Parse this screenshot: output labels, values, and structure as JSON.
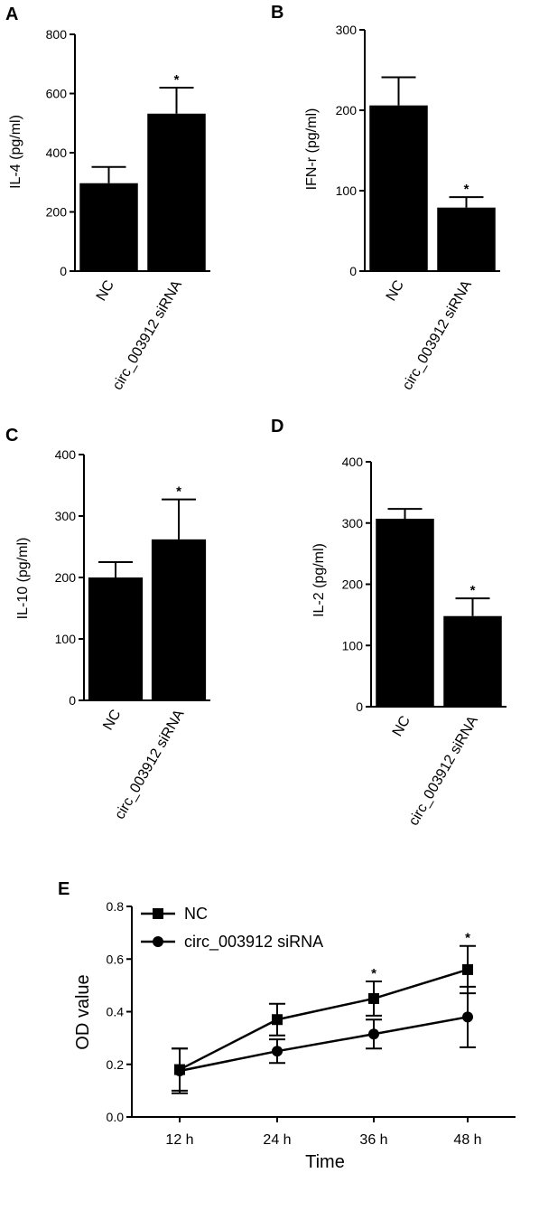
{
  "chart_data": [
    {
      "panel": "A",
      "type": "bar",
      "ylabel": "IL-4 (pg/ml)",
      "ylim": [
        0,
        800
      ],
      "yticks": [
        0,
        200,
        400,
        600,
        800
      ],
      "categories": [
        "NC",
        "circ_003912 siRNA"
      ],
      "values": [
        297,
        532
      ],
      "errors": [
        55,
        88
      ],
      "significance": [
        "",
        "*"
      ]
    },
    {
      "panel": "B",
      "type": "bar",
      "ylabel": "IFN-r (pg/ml)",
      "ylim": [
        0,
        300
      ],
      "yticks": [
        0,
        100,
        200,
        300
      ],
      "categories": [
        "NC",
        "circ_003912 siRNA"
      ],
      "values": [
        206,
        79
      ],
      "errors": [
        35,
        13
      ],
      "significance": [
        "",
        "*"
      ]
    },
    {
      "panel": "C",
      "type": "bar",
      "ylabel": "IL-10 (pg/ml)",
      "ylim": [
        0,
        400
      ],
      "yticks": [
        0,
        100,
        200,
        300,
        400
      ],
      "categories": [
        "NC",
        "circ_003912 siRNA"
      ],
      "values": [
        200,
        262
      ],
      "errors": [
        25,
        65
      ],
      "significance": [
        "",
        "*"
      ]
    },
    {
      "panel": "D",
      "type": "bar",
      "ylabel": "IL-2 (pg/ml)",
      "ylim": [
        0,
        400
      ],
      "yticks": [
        0,
        100,
        200,
        300,
        400
      ],
      "categories": [
        "NC",
        "circ_003912 siRNA"
      ],
      "values": [
        307,
        148
      ],
      "errors": [
        16,
        29
      ],
      "significance": [
        "",
        "*"
      ]
    },
    {
      "panel": "E",
      "type": "line",
      "xlabel": "Time",
      "ylabel": "OD value",
      "ylim": [
        0,
        0.8
      ],
      "yticks": [
        "0.0",
        "0.2",
        "0.4",
        "0.6",
        "0.8"
      ],
      "categories": [
        "12 h",
        "24 h",
        "36 h",
        "48 h"
      ],
      "legend_position": "top-left",
      "series": [
        {
          "name": "NC",
          "marker": "square",
          "values": [
            0.18,
            0.37,
            0.45,
            0.56
          ],
          "errors": [
            0.08,
            0.06,
            0.065,
            0.09
          ]
        },
        {
          "name": "circ_003912 siRNA",
          "marker": "circle",
          "values": [
            0.175,
            0.25,
            0.315,
            0.38
          ],
          "errors": [
            0.085,
            0.045,
            0.055,
            0.115
          ]
        }
      ],
      "significance": [
        "",
        "",
        "*",
        "*"
      ]
    }
  ]
}
